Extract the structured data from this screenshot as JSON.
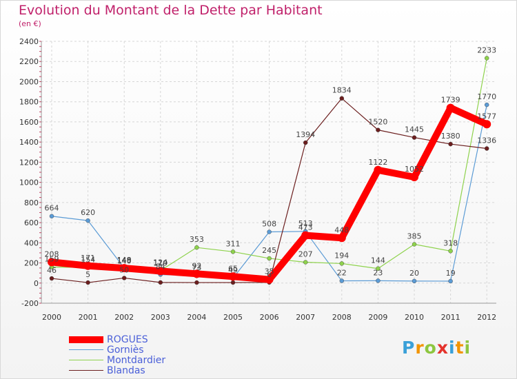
{
  "header": {
    "title": "Evolution du Montant de la Dette par Habitant",
    "unit": "(en €)"
  },
  "logo": {
    "text": "Proxiti"
  },
  "chart_data": {
    "type": "line",
    "title": "Evolution du Montant de la Dette par Habitant",
    "subtitle": "(en €)",
    "xlabel": "",
    "ylabel": "",
    "categories": [
      "2000",
      "2001",
      "2002",
      "2003",
      "2004",
      "2005",
      "2006",
      "2007",
      "2008",
      "2009",
      "2010",
      "2011",
      "2012"
    ],
    "ylim": [
      -200,
      2400
    ],
    "yticks": [
      -200,
      0,
      200,
      400,
      600,
      800,
      1000,
      1200,
      1400,
      1600,
      1800,
      2000,
      2200,
      2400
    ],
    "grid": true,
    "legend_position": "bottom-left",
    "series": [
      {
        "name": "ROGUES",
        "color": "#ff0000",
        "width": 10,
        "values": [
          208,
          171,
          148,
          119,
          92,
          65,
          35,
          473,
          448,
          1122,
          1052,
          1739,
          1577
        ]
      },
      {
        "name": "Gorniès",
        "color": "#5b9bd5",
        "width": 1.2,
        "values": [
          664,
          620,
          149,
          84,
          73,
          49,
          508,
          513,
          22,
          23,
          20,
          19,
          1770
        ]
      },
      {
        "name": "Montdardier",
        "color": "#8ed24c",
        "width": 1.2,
        "values": [
          159,
          154,
          140,
          124,
          353,
          311,
          245,
          207,
          194,
          144,
          385,
          318,
          2233
        ]
      },
      {
        "name": "Blandas",
        "color": "#6b1e1e",
        "width": 1.2,
        "values": [
          46,
          5,
          50,
          6,
          5,
          5,
          6,
          1394,
          1834,
          1520,
          1445,
          1380,
          1336
        ]
      }
    ],
    "data_labels": [
      {
        "series": 1,
        "index": 0,
        "text": "664"
      },
      {
        "series": 1,
        "index": 1,
        "text": "620"
      },
      {
        "series": 1,
        "index": 6,
        "text": "508"
      },
      {
        "series": 1,
        "index": 7,
        "text": "513"
      },
      {
        "series": 1,
        "index": 8,
        "text": "22"
      },
      {
        "series": 1,
        "index": 9,
        "text": "23"
      },
      {
        "series": 1,
        "index": 10,
        "text": "20"
      },
      {
        "series": 1,
        "index": 11,
        "text": "19"
      },
      {
        "series": 1,
        "index": 12,
        "text": "1770"
      },
      {
        "series": 2,
        "index": 0,
        "text": "159"
      },
      {
        "series": 2,
        "index": 1,
        "text": "154"
      },
      {
        "series": 2,
        "index": 2,
        "text": "140"
      },
      {
        "series": 2,
        "index": 3,
        "text": "124"
      },
      {
        "series": 2,
        "index": 4,
        "text": "353"
      },
      {
        "series": 2,
        "index": 5,
        "text": "311"
      },
      {
        "series": 2,
        "index": 6,
        "text": "245"
      },
      {
        "series": 2,
        "index": 7,
        "text": "207"
      },
      {
        "series": 2,
        "index": 8,
        "text": "194"
      },
      {
        "series": 2,
        "index": 9,
        "text": "144"
      },
      {
        "series": 2,
        "index": 10,
        "text": "385"
      },
      {
        "series": 2,
        "index": 11,
        "text": "318"
      },
      {
        "series": 2,
        "index": 12,
        "text": "2233"
      },
      {
        "series": 3,
        "index": 0,
        "text": "46"
      },
      {
        "series": 3,
        "index": 1,
        "text": "5"
      },
      {
        "series": 3,
        "index": 2,
        "text": "50"
      },
      {
        "series": 3,
        "index": 6,
        "text": "6"
      },
      {
        "series": 3,
        "index": 7,
        "text": "1394"
      },
      {
        "series": 3,
        "index": 8,
        "text": "1834"
      },
      {
        "series": 3,
        "index": 9,
        "text": "1520"
      },
      {
        "series": 3,
        "index": 10,
        "text": "1445"
      },
      {
        "series": 3,
        "index": 11,
        "text": "1380"
      },
      {
        "series": 3,
        "index": 12,
        "text": "1336"
      },
      {
        "series": 0,
        "index": 0,
        "text": "208"
      },
      {
        "series": 0,
        "index": 1,
        "text": "171"
      },
      {
        "series": 0,
        "index": 2,
        "text": "148"
      },
      {
        "series": 0,
        "index": 3,
        "text": "119"
      },
      {
        "series": 0,
        "index": 4,
        "text": "92"
      },
      {
        "series": 0,
        "index": 5,
        "text": "65"
      },
      {
        "series": 0,
        "index": 6,
        "text": "35"
      },
      {
        "series": 0,
        "index": 7,
        "text": "473"
      },
      {
        "series": 0,
        "index": 8,
        "text": "448"
      },
      {
        "series": 0,
        "index": 9,
        "text": "1122"
      },
      {
        "series": 0,
        "index": 10,
        "text": "1052"
      },
      {
        "series": 0,
        "index": 11,
        "text": "1739"
      },
      {
        "series": 0,
        "index": 12,
        "text": "1577"
      },
      {
        "series": 1,
        "index": 2,
        "text": "149"
      },
      {
        "series": 1,
        "index": 3,
        "text": "84"
      },
      {
        "series": 1,
        "index": 4,
        "text": "73"
      },
      {
        "series": 1,
        "index": 5,
        "text": "49"
      }
    ]
  }
}
